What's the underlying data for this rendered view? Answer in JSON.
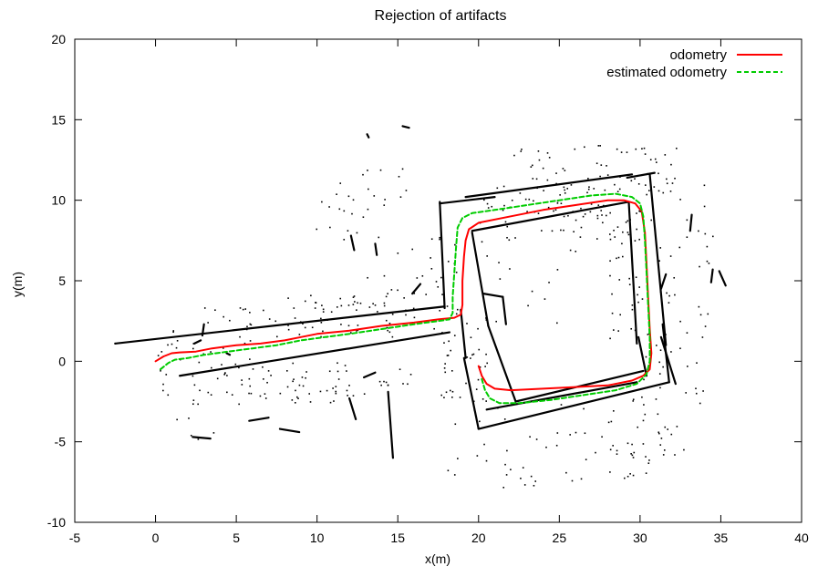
{
  "chart_data": {
    "type": "line",
    "title": "Rejection of artifacts",
    "xlabel": "x(m)",
    "ylabel": "y(m)",
    "xlim": [
      -5,
      40
    ],
    "ylim": [
      -10,
      20
    ],
    "x_ticks": [
      -5,
      0,
      5,
      10,
      15,
      20,
      25,
      30,
      35,
      40
    ],
    "y_ticks": [
      -10,
      -5,
      0,
      5,
      10,
      15,
      20
    ],
    "x_tick_labels": [
      "-5",
      "0",
      "5",
      "10",
      "15",
      "20",
      "25",
      "30",
      "35",
      "40"
    ],
    "y_tick_labels": [
      "-10",
      "-5",
      "0",
      "5",
      "10",
      "15",
      "20"
    ],
    "grid": false,
    "legend_position": "top-right",
    "series": [
      {
        "name": "odometry",
        "color": "#ff0000",
        "style": "solid",
        "points": [
          [
            0,
            0
          ],
          [
            0.5,
            0.3
          ],
          [
            1.0,
            0.5
          ],
          [
            1.5,
            0.55
          ],
          [
            2.5,
            0.6
          ],
          [
            3.5,
            0.8
          ],
          [
            5.0,
            1.0
          ],
          [
            6.5,
            1.1
          ],
          [
            8.0,
            1.3
          ],
          [
            9.0,
            1.5
          ],
          [
            10.0,
            1.7
          ],
          [
            12.0,
            1.9
          ],
          [
            14.0,
            2.2
          ],
          [
            16.0,
            2.4
          ],
          [
            17.5,
            2.6
          ],
          [
            18.5,
            2.7
          ],
          [
            18.9,
            2.9
          ],
          [
            19.0,
            3.5
          ],
          [
            19.0,
            5.0
          ],
          [
            19.1,
            6.5
          ],
          [
            19.2,
            7.5
          ],
          [
            19.4,
            8.2
          ],
          [
            20.0,
            8.6
          ],
          [
            22.0,
            9.0
          ],
          [
            24.0,
            9.4
          ],
          [
            26.0,
            9.7
          ],
          [
            28.0,
            10.0
          ],
          [
            29.0,
            10.0
          ],
          [
            29.7,
            9.8
          ],
          [
            30.1,
            9.3
          ],
          [
            30.3,
            8.0
          ],
          [
            30.4,
            6.0
          ],
          [
            30.5,
            4.0
          ],
          [
            30.6,
            2.0
          ],
          [
            30.7,
            0.5
          ],
          [
            30.6,
            -0.5
          ],
          [
            30.2,
            -0.9
          ],
          [
            29.5,
            -1.2
          ],
          [
            28.0,
            -1.5
          ],
          [
            26.0,
            -1.6
          ],
          [
            24.0,
            -1.7
          ],
          [
            22.0,
            -1.8
          ],
          [
            21.0,
            -1.7
          ],
          [
            20.5,
            -1.4
          ],
          [
            20.2,
            -0.9
          ],
          [
            20.0,
            -0.3
          ]
        ]
      },
      {
        "name": "estimated odometry",
        "color": "#00cc00",
        "style": "dashed",
        "points": [
          [
            0.3,
            -0.5
          ],
          [
            0.8,
            -0.1
          ],
          [
            1.2,
            0.1
          ],
          [
            2.0,
            0.2
          ],
          [
            3.0,
            0.4
          ],
          [
            4.5,
            0.6
          ],
          [
            6.0,
            0.8
          ],
          [
            7.5,
            1.0
          ],
          [
            9.0,
            1.3
          ],
          [
            10.5,
            1.5
          ],
          [
            12.0,
            1.7
          ],
          [
            14.0,
            2.0
          ],
          [
            16.0,
            2.3
          ],
          [
            17.5,
            2.5
          ],
          [
            18.2,
            2.6
          ],
          [
            18.4,
            3.0
          ],
          [
            18.4,
            4.0
          ],
          [
            18.5,
            5.5
          ],
          [
            18.6,
            7.0
          ],
          [
            18.7,
            8.3
          ],
          [
            19.0,
            8.9
          ],
          [
            19.6,
            9.2
          ],
          [
            21.0,
            9.4
          ],
          [
            23.0,
            9.7
          ],
          [
            25.0,
            10.0
          ],
          [
            27.0,
            10.3
          ],
          [
            28.5,
            10.4
          ],
          [
            29.5,
            10.2
          ],
          [
            30.0,
            9.8
          ],
          [
            30.2,
            9.0
          ],
          [
            30.3,
            7.5
          ],
          [
            30.4,
            5.5
          ],
          [
            30.5,
            3.5
          ],
          [
            30.6,
            1.5
          ],
          [
            30.6,
            0.0
          ],
          [
            30.4,
            -0.8
          ],
          [
            29.8,
            -1.4
          ],
          [
            28.5,
            -1.8
          ],
          [
            26.5,
            -2.1
          ],
          [
            24.5,
            -2.4
          ],
          [
            22.5,
            -2.6
          ],
          [
            21.3,
            -2.6
          ],
          [
            20.7,
            -2.3
          ],
          [
            20.4,
            -1.8
          ],
          [
            20.2,
            -1.1
          ]
        ]
      }
    ],
    "scan_points_color": "#000000"
  }
}
